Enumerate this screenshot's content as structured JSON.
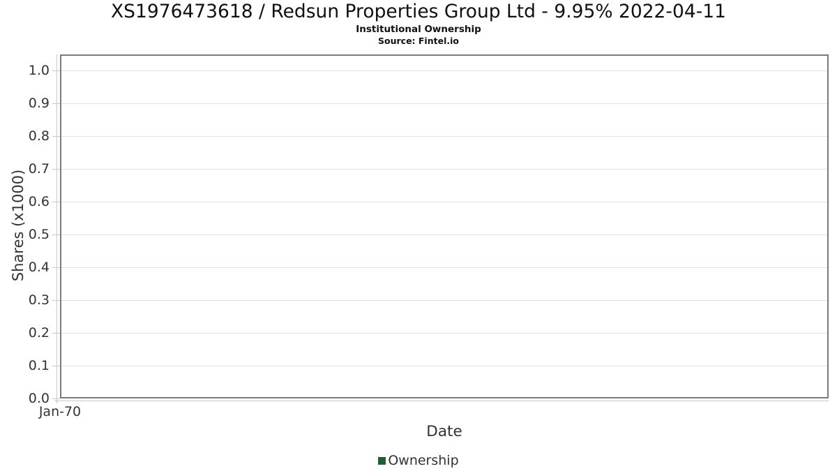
{
  "header": {
    "title": "XS1976473618 / Redsun Properties Group Ltd - 9.95% 2022-04-11",
    "subtitle": "Institutional Ownership",
    "source": "Source: Fintel.io"
  },
  "chart_data": {
    "type": "bar",
    "title": "XS1976473618 / Redsun Properties Group Ltd - 9.95% 2022-04-11",
    "subtitle": "Institutional Ownership",
    "source": "Source: Fintel.io",
    "xlabel": "Date",
    "ylabel": "Shares (x1000)",
    "ylim": [
      0.0,
      1.05
    ],
    "y_ticks": [
      1.0,
      0.9,
      0.8,
      0.7,
      0.6,
      0.5,
      0.4,
      0.3,
      0.2,
      0.1,
      0.0
    ],
    "y_tick_labels": [
      "1.0",
      "0.9",
      "0.8",
      "0.7",
      "0.6",
      "0.5",
      "0.4",
      "0.3",
      "0.2",
      "0.1",
      "0.0"
    ],
    "x_tick_labels": [
      "Jan-70"
    ],
    "grid": true,
    "legend_position": "bottom",
    "series": [
      {
        "name": "Ownership",
        "color": "#235d32",
        "x": [],
        "values": []
      }
    ]
  },
  "legend": {
    "items": [
      {
        "label": "Ownership",
        "color": "#235d32"
      }
    ]
  },
  "colors": {
    "frame": "#7b7b7b",
    "gridline": "#e2e2e2",
    "axis_line": "#c8c8c8",
    "tick_text": "#333333",
    "title_text": "#111111"
  }
}
